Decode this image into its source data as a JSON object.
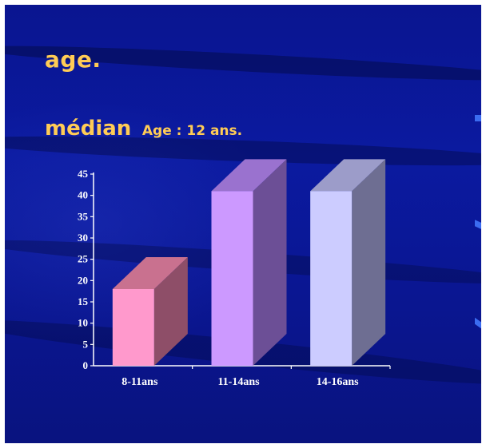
{
  "slide": {
    "title": "age.",
    "subtitle_main": "médian",
    "subtitle_small": "Age : 12 ans."
  },
  "colors": {
    "background": "#0b1aa0",
    "title": "#ffcc55",
    "axis": "#ffffff",
    "bar_front": [
      "#ff99cc",
      "#cc99ff",
      "#ccccff"
    ],
    "bar_top": [
      "#c9718f",
      "#9a72cf",
      "#9c9cc9"
    ],
    "bar_side": [
      "#8e4e68",
      "#6c4f96",
      "#6e6e92"
    ]
  },
  "chart_data": {
    "type": "bar",
    "style": "3d",
    "categories": [
      "8-11ans",
      "11-14ans",
      "14-16ans"
    ],
    "values": [
      18,
      41,
      41
    ],
    "title": "",
    "xlabel": "",
    "ylabel": "",
    "ylim": [
      0,
      45
    ],
    "yticks": [
      0,
      5,
      10,
      15,
      20,
      25,
      30,
      35,
      40,
      45
    ],
    "grid": false,
    "legend": "none"
  }
}
